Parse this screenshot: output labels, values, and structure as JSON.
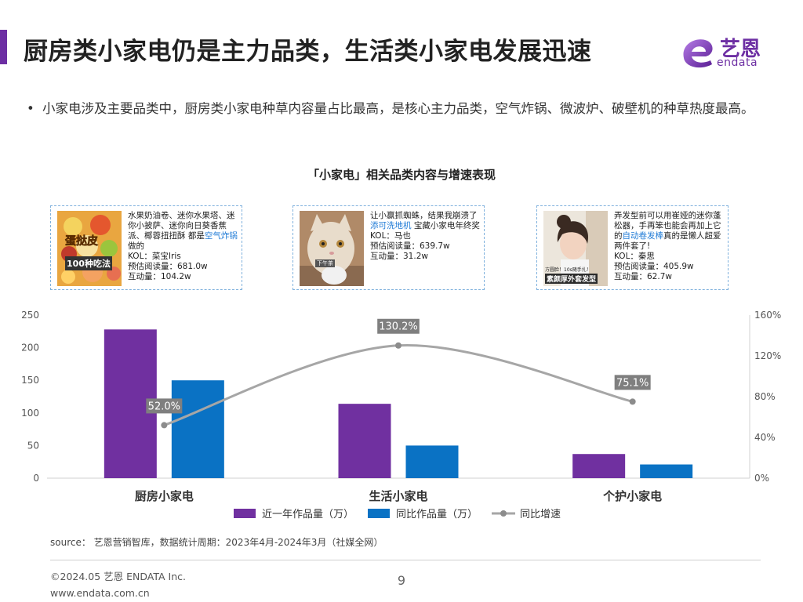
{
  "header": {
    "title": "厨房类小家电仍是主力品类，生活类小家电发展迅速",
    "logo_name": "艺恩",
    "logo_en": "endata"
  },
  "bullet": {
    "marker": "•",
    "text": "小家电涉及主要品类中，厨房类小家电种草内容量占比最高，是核心主力品类，空气炸锅、微波炉、破壁机的种草热度最高。"
  },
  "cards": [
    {
      "thumb_caption_1": "蛋挞皮",
      "thumb_caption_2": "100种吃法",
      "text_pre": "水果奶油卷、迷你水果塔、迷你小披萨、迷你向日葵香蕉派、椰蓉扭扭酥 都是",
      "highlight": "空气炸锅",
      "text_post": "做的",
      "kol": "KOL：菜宝Iris",
      "reads": "预估阅读量：681.0w",
      "interactions": "互动量：104.2w"
    },
    {
      "thumb_caption_1": "下午茶",
      "text_pre": "让小赢抓蜘蛛，结果我崩溃了 ",
      "highlight": "添可洗地机",
      "text_post": " 宝藏小家电年终奖",
      "kol": "KOL：马也",
      "reads": "预估阅读量：639.7w",
      "interactions": "互动量：31.2w"
    },
    {
      "thumb_caption_1": "方圆脸！10s随手扎！",
      "thumb_caption_2": "素颜厚外套发型",
      "text_pre": "弄发型前可以用崔娅的迷你蓬松器，手再笨也能会再加上它的",
      "highlight": "自动卷发棒",
      "text_post": "真的是懒人超爱两件套了!",
      "kol": "KOL：秦思",
      "reads": "预估阅读量：405.9w",
      "interactions": "互动量：62.7w"
    }
  ],
  "chart_data": {
    "type": "bar",
    "title": "「小家电」相关品类内容与增速表现",
    "categories": [
      "厨房小家电",
      "生活小家电",
      "个护小家电"
    ],
    "series": [
      {
        "name": "近一年作品量（万）",
        "type": "bar",
        "axis": "left",
        "values": [
          228,
          114,
          37
        ],
        "color": "#7030a0"
      },
      {
        "name": "同比作品量（万）",
        "type": "bar",
        "axis": "left",
        "values": [
          150,
          50,
          21
        ],
        "color": "#0a72c4"
      },
      {
        "name": "同比增速",
        "type": "line",
        "axis": "right",
        "values": [
          52.0,
          130.2,
          75.1
        ],
        "labels": [
          "52.0%",
          "130.2%",
          "75.1%"
        ],
        "color": "#a6a6a6"
      }
    ],
    "y_left": {
      "min": 0,
      "max": 250,
      "ticks": [
        0,
        50,
        100,
        150,
        200,
        250
      ],
      "tick_labels": [
        "0",
        "50",
        "100",
        "150",
        "200",
        "250"
      ]
    },
    "y_right": {
      "min": 0,
      "max": 160,
      "ticks": [
        0,
        40,
        80,
        120,
        160
      ],
      "tick_labels": [
        "0%",
        "40%",
        "80%",
        "120%",
        "160%"
      ]
    },
    "legend_position": "bottom"
  },
  "footer": {
    "source": "source： 艺恩营销智库，数据统计周期：2023年4月-2024年3月（社媒全网）",
    "copyright": "©2024.05  艺恩  ENDATA Inc.",
    "website": "www.endata.com.cn",
    "page_number": "9"
  },
  "colors": {
    "brand_purple": "#6d2fa3",
    "highlight_blue": "#1e7ad6",
    "card_border": "#7fb1dd"
  }
}
